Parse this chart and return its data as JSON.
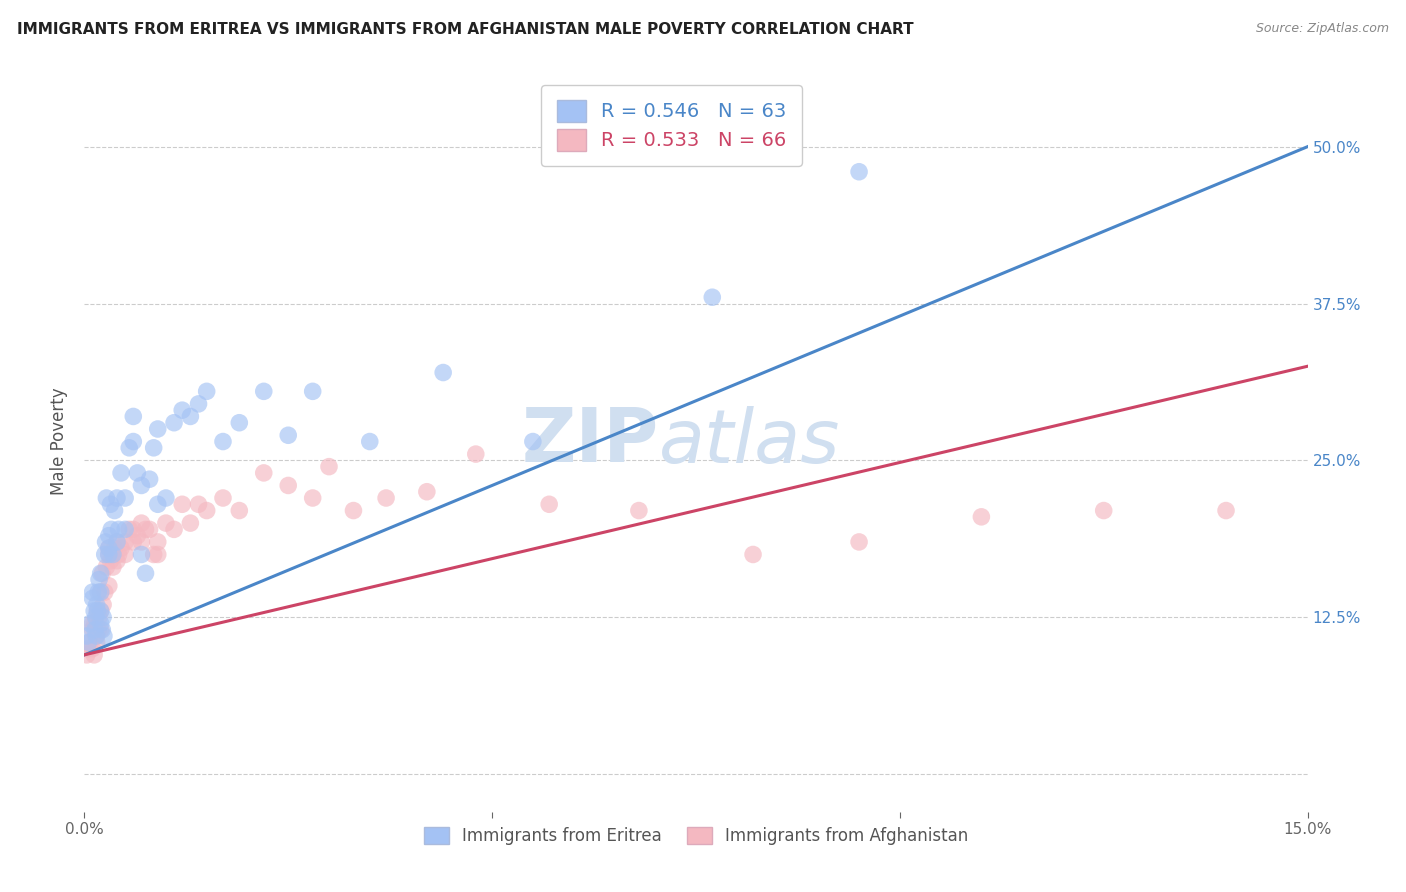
{
  "title": "IMMIGRANTS FROM ERITREA VS IMMIGRANTS FROM AFGHANISTAN MALE POVERTY CORRELATION CHART",
  "source": "Source: ZipAtlas.com",
  "ylabel": "Male Poverty",
  "xmin": 0.0,
  "xmax": 0.15,
  "ymin": -0.03,
  "ymax": 0.56,
  "yticks": [
    0.0,
    0.125,
    0.25,
    0.375,
    0.5
  ],
  "ytick_labels": [
    "",
    "12.5%",
    "25.0%",
    "37.5%",
    "50.0%"
  ],
  "xticks": [
    0.0,
    0.05,
    0.1,
    0.15
  ],
  "xtick_labels": [
    "0.0%",
    "",
    "",
    "15.0%"
  ],
  "legend_eritrea_R": "R = 0.546",
  "legend_eritrea_N": "N = 63",
  "legend_afghanistan_R": "R = 0.533",
  "legend_afghanistan_N": "N = 66",
  "color_eritrea": "#a4c2f4",
  "color_afghanistan": "#f4b8c1",
  "color_line_eritrea": "#4a86c8",
  "color_line_afghanistan": "#cc4466",
  "watermark_zip": "ZIP",
  "watermark_atlas": "atlas",
  "watermark_color": "#d0dff0",
  "eritrea_line_x0": 0.0,
  "eritrea_line_y0": 0.095,
  "eritrea_line_x1": 0.15,
  "eritrea_line_y1": 0.5,
  "afghanistan_line_x0": 0.0,
  "afghanistan_line_y0": 0.095,
  "afghanistan_line_x1": 0.15,
  "afghanistan_line_y1": 0.325,
  "eritrea_x": [
    0.0003,
    0.0005,
    0.0007,
    0.001,
    0.001,
    0.0012,
    0.0013,
    0.0014,
    0.0015,
    0.0015,
    0.0016,
    0.0017,
    0.0018,
    0.002,
    0.002,
    0.002,
    0.002,
    0.0022,
    0.0023,
    0.0024,
    0.0025,
    0.0026,
    0.0027,
    0.003,
    0.003,
    0.003,
    0.0032,
    0.0033,
    0.0035,
    0.0037,
    0.004,
    0.004,
    0.0042,
    0.0045,
    0.005,
    0.005,
    0.0055,
    0.006,
    0.006,
    0.0065,
    0.007,
    0.007,
    0.0075,
    0.008,
    0.0085,
    0.009,
    0.009,
    0.01,
    0.011,
    0.012,
    0.013,
    0.014,
    0.015,
    0.017,
    0.019,
    0.022,
    0.025,
    0.028,
    0.035,
    0.044,
    0.055,
    0.077,
    0.095
  ],
  "eritrea_y": [
    0.11,
    0.105,
    0.12,
    0.14,
    0.145,
    0.13,
    0.115,
    0.125,
    0.11,
    0.135,
    0.13,
    0.145,
    0.155,
    0.12,
    0.16,
    0.145,
    0.13,
    0.115,
    0.125,
    0.11,
    0.175,
    0.185,
    0.22,
    0.18,
    0.175,
    0.19,
    0.215,
    0.195,
    0.175,
    0.21,
    0.22,
    0.185,
    0.195,
    0.24,
    0.22,
    0.195,
    0.26,
    0.265,
    0.285,
    0.24,
    0.23,
    0.175,
    0.16,
    0.235,
    0.26,
    0.215,
    0.275,
    0.22,
    0.28,
    0.29,
    0.285,
    0.295,
    0.305,
    0.265,
    0.28,
    0.305,
    0.27,
    0.305,
    0.265,
    0.32,
    0.265,
    0.38,
    0.48
  ],
  "afghanistan_x": [
    0.0003,
    0.0005,
    0.0007,
    0.001,
    0.001,
    0.001,
    0.0012,
    0.0013,
    0.0014,
    0.0015,
    0.0016,
    0.0017,
    0.0018,
    0.002,
    0.002,
    0.002,
    0.0022,
    0.0023,
    0.0025,
    0.0027,
    0.003,
    0.003,
    0.003,
    0.0032,
    0.0035,
    0.0037,
    0.004,
    0.004,
    0.0042,
    0.0045,
    0.005,
    0.005,
    0.0055,
    0.006,
    0.006,
    0.0065,
    0.007,
    0.007,
    0.0075,
    0.008,
    0.0085,
    0.009,
    0.009,
    0.01,
    0.011,
    0.012,
    0.013,
    0.014,
    0.015,
    0.017,
    0.019,
    0.022,
    0.025,
    0.028,
    0.03,
    0.033,
    0.037,
    0.042,
    0.048,
    0.057,
    0.068,
    0.082,
    0.095,
    0.11,
    0.125,
    0.14
  ],
  "afghanistan_y": [
    0.095,
    0.1,
    0.105,
    0.12,
    0.115,
    0.1,
    0.095,
    0.12,
    0.11,
    0.105,
    0.13,
    0.115,
    0.125,
    0.145,
    0.13,
    0.115,
    0.16,
    0.135,
    0.145,
    0.165,
    0.15,
    0.175,
    0.18,
    0.17,
    0.165,
    0.18,
    0.17,
    0.185,
    0.175,
    0.18,
    0.185,
    0.175,
    0.195,
    0.185,
    0.195,
    0.19,
    0.2,
    0.185,
    0.195,
    0.195,
    0.175,
    0.185,
    0.175,
    0.2,
    0.195,
    0.215,
    0.2,
    0.215,
    0.21,
    0.22,
    0.21,
    0.24,
    0.23,
    0.22,
    0.245,
    0.21,
    0.22,
    0.225,
    0.255,
    0.215,
    0.21,
    0.175,
    0.185,
    0.205,
    0.21,
    0.21
  ]
}
